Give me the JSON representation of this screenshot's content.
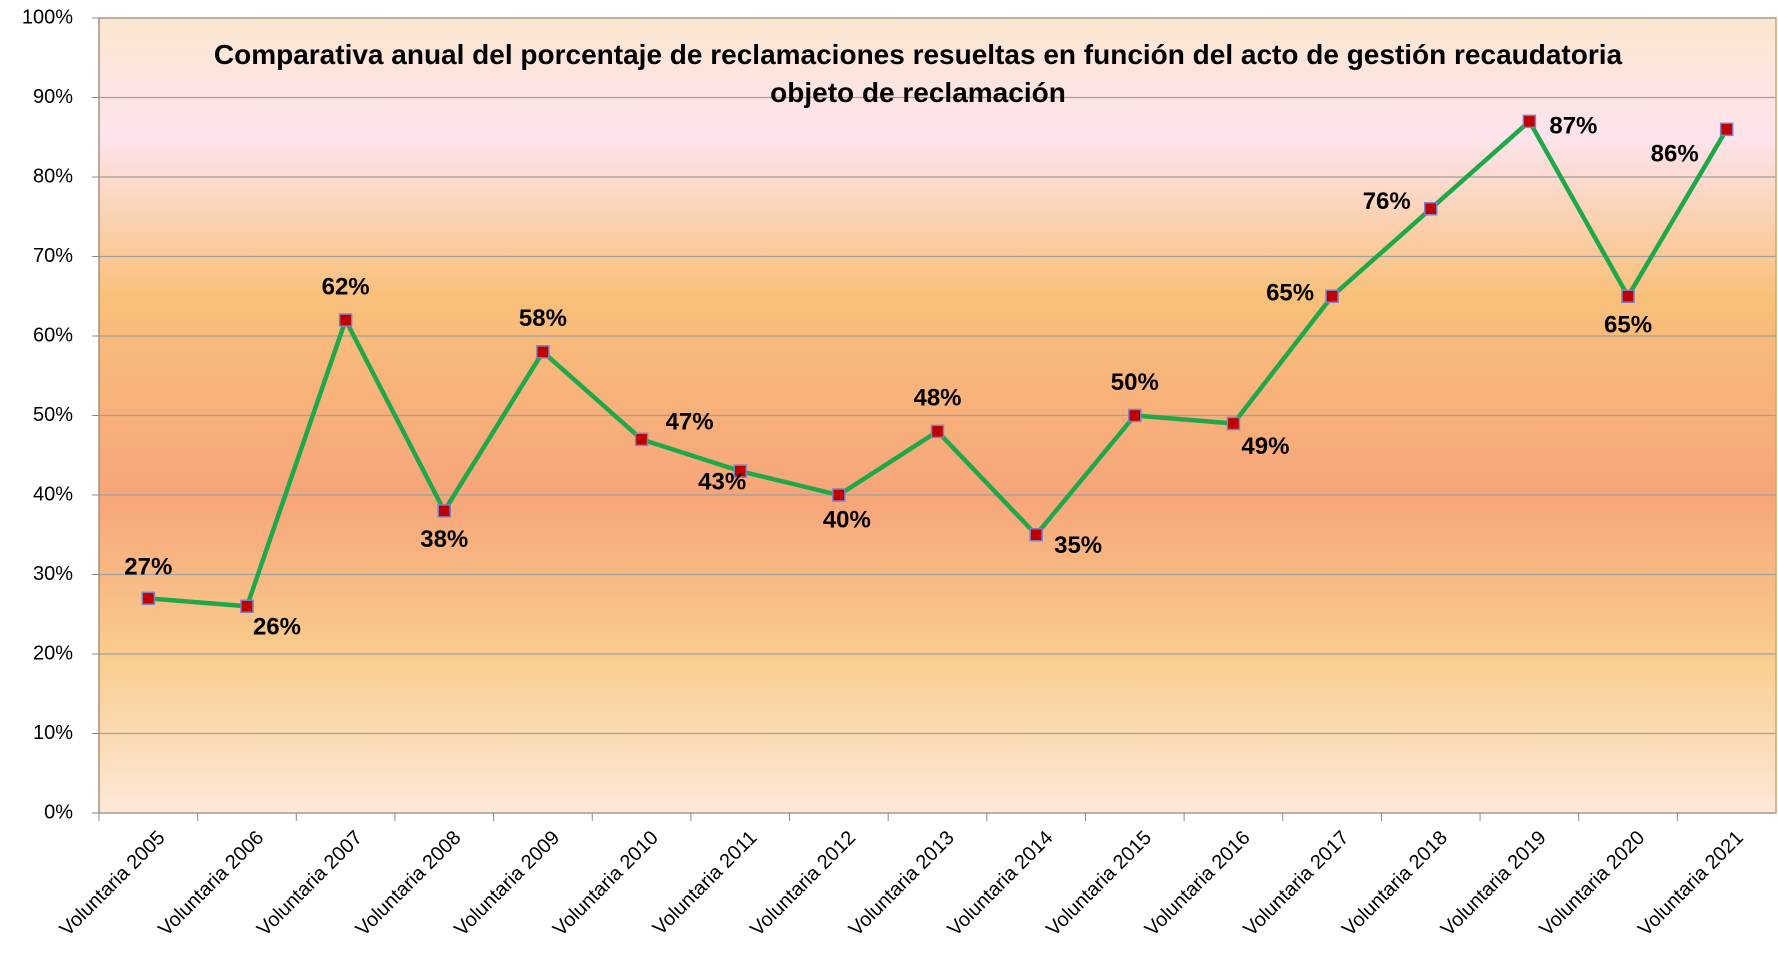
{
  "chart_data": {
    "type": "line",
    "title": "Comparativa anual del porcentaje de reclamaciones resueltas en función del acto de gestión recaudatoria objeto de reclamación",
    "categories": [
      "Voluntaria 2005",
      "Voluntaria 2006",
      "Voluntaria 2007",
      "Voluntaria 2008",
      "Voluntaria 2009",
      "Voluntaria 2010",
      "Voluntaria 2011",
      "Voluntaria 2012",
      "Voluntaria 2013",
      "Voluntaria 2014",
      "Voluntaria 2015",
      "Voluntaria 2016",
      "Voluntaria 2017",
      "Voluntaria 2018",
      "Voluntaria 2019",
      "Voluntaria 2020",
      "Voluntaria 2021"
    ],
    "series": [
      {
        "color": "#1ea84a",
        "marker_color": "#c00000",
        "values": [
          27,
          26,
          62,
          38,
          58,
          47,
          43,
          40,
          48,
          35,
          50,
          49,
          65,
          76,
          87,
          65,
          86
        ],
        "value_labels": [
          "27%",
          "26%",
          "62%",
          "38%",
          "58%",
          "47%",
          "43%",
          "40%",
          "48%",
          "35%",
          "50%",
          "49%",
          "65%",
          "76%",
          "87%",
          "65%",
          "86%"
        ]
      }
    ],
    "ylim": [
      0,
      100
    ],
    "yticks": [
      {
        "value": 0,
        "label": "0%"
      },
      {
        "value": 10,
        "label": "10%"
      },
      {
        "value": 20,
        "label": "20%"
      },
      {
        "value": 30,
        "label": "30%"
      },
      {
        "value": 40,
        "label": "40%"
      },
      {
        "value": 50,
        "label": "50%"
      },
      {
        "value": 60,
        "label": "60%"
      },
      {
        "value": 70,
        "label": "70%"
      },
      {
        "value": 80,
        "label": "80%"
      },
      {
        "value": 90,
        "label": "90%"
      },
      {
        "value": 100,
        "label": "100%"
      }
    ],
    "grid": true
  }
}
